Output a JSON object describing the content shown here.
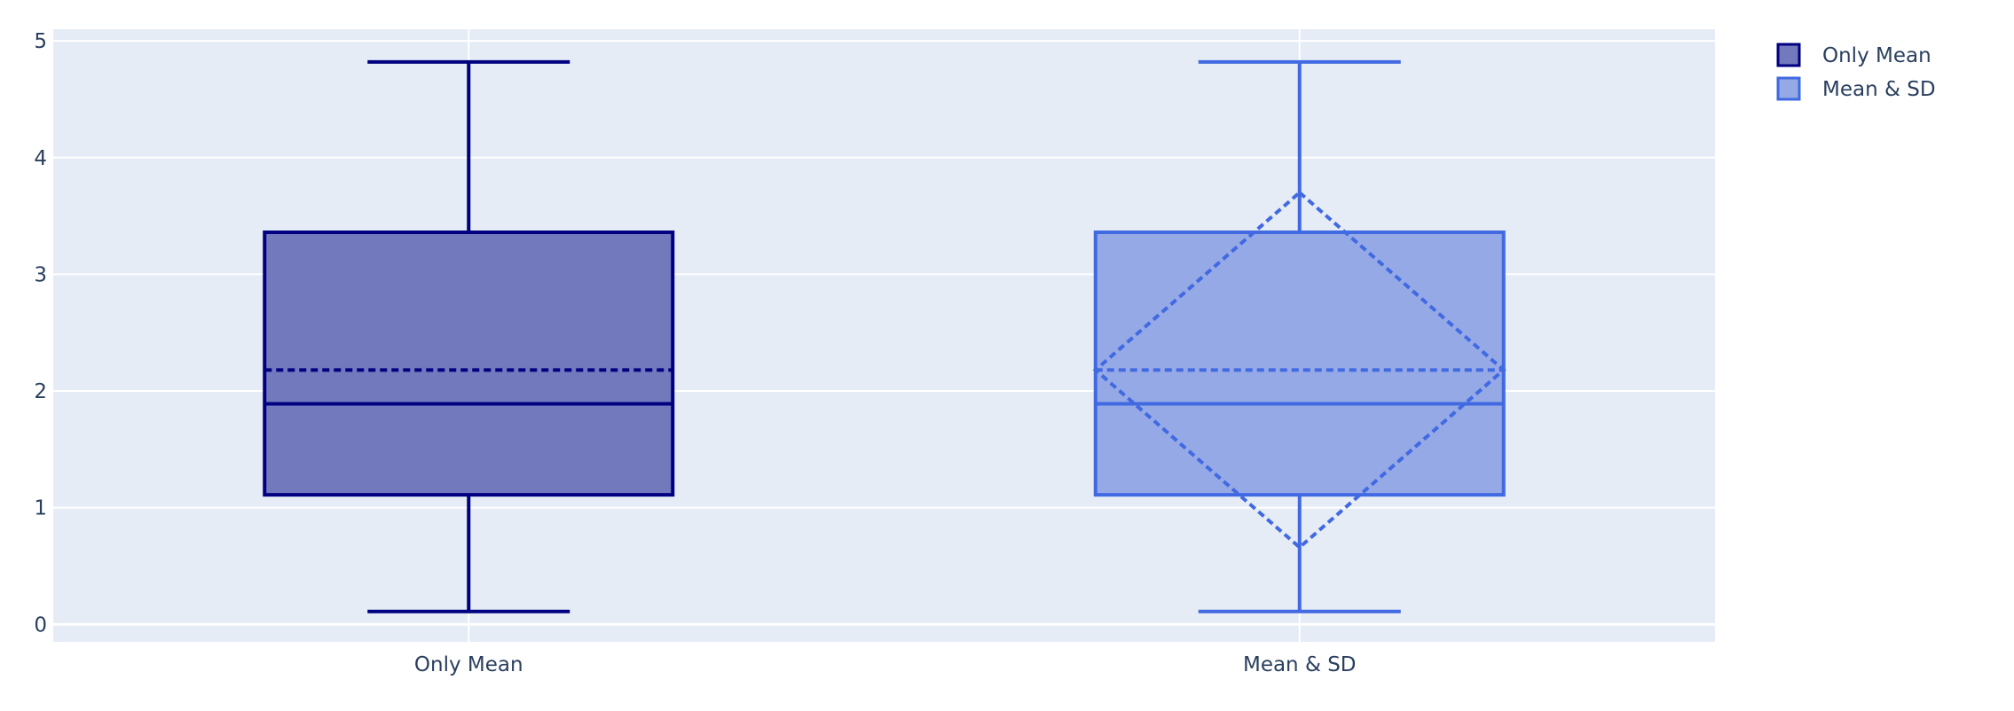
{
  "chart_data": {
    "type": "box",
    "title": "",
    "xlabel": "",
    "ylabel": "",
    "ylim": [
      -0.15,
      5.1
    ],
    "yticks": [
      0,
      1,
      2,
      3,
      4,
      5
    ],
    "grid": true,
    "legend_position": "top-right",
    "categories": [
      "Only Mean",
      "Mean & SD"
    ],
    "series": [
      {
        "name": "Only Mean",
        "category": "Only Mean",
        "whisker_low": 0.11,
        "q1": 1.11,
        "median": 1.89,
        "mean": 2.18,
        "q3": 3.36,
        "whisker_high": 4.82,
        "show_mean": true,
        "show_sd": false,
        "line_color": "#000080",
        "fill_color": "#7279bd"
      },
      {
        "name": "Mean & SD",
        "category": "Mean & SD",
        "whisker_low": 0.11,
        "q1": 1.11,
        "median": 1.89,
        "mean": 2.18,
        "sd": 1.52,
        "q3": 3.36,
        "whisker_high": 4.82,
        "show_mean": true,
        "show_sd": true,
        "line_color": "#4169e1",
        "fill_color": "#95a9e6"
      }
    ]
  },
  "style": {
    "plot_bg": "#e5ecf6",
    "grid_color": "#ffffff",
    "text_color": "#2a3f5f"
  }
}
